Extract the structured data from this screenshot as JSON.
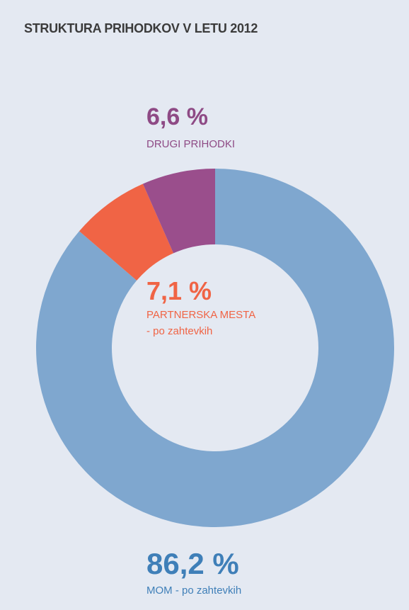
{
  "chart_data": {
    "type": "donut",
    "title": "STRUKTURA PRIHODKOV V LETU 2012",
    "categories": [
      "MOM - po zahtevkih",
      "PARTNERSKA MESTA\n- po zahtevkih",
      "DRUGI PRIHODKI"
    ],
    "values": [
      86.2,
      7.1,
      6.6
    ],
    "value_labels": [
      "86,2 %",
      "7,1 %",
      "6,6 %"
    ],
    "colors": [
      "#7fa7cf",
      "#f06445",
      "#9a4e8c"
    ],
    "label_colors": [
      "#3f7fb8",
      "#f06445",
      "#8e4a85"
    ]
  }
}
